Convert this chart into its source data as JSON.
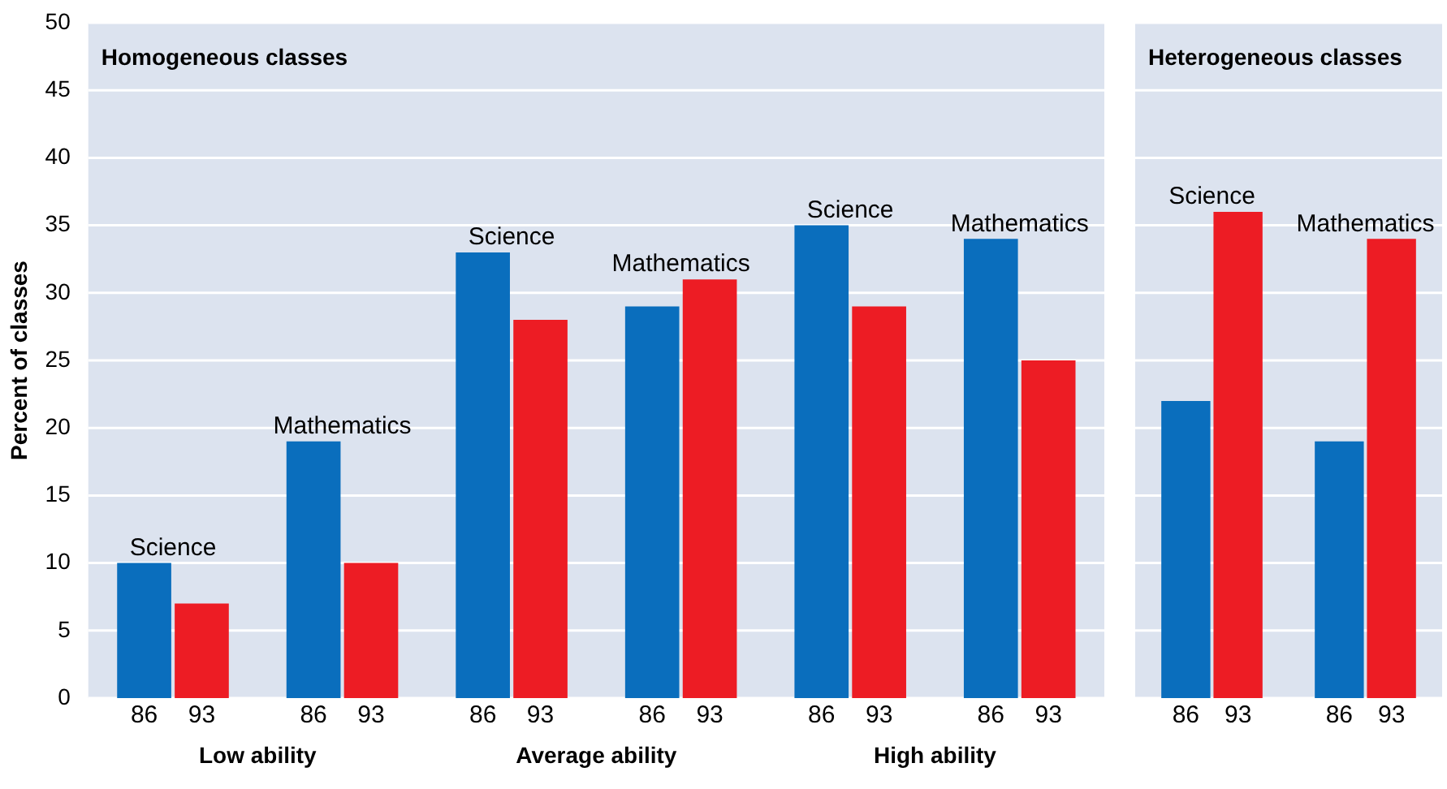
{
  "chart_data": [
    {
      "type": "bar",
      "title": "Homogeneous classes",
      "ylabel": "Percent of classes",
      "categories": [
        "Science",
        "Mathematics",
        "Science",
        "Mathematics",
        "Science",
        "Mathematics"
      ],
      "series": [
        {
          "name": "86",
          "color": "#0a6ebd",
          "values": [
            10,
            19,
            33,
            29,
            35,
            34
          ]
        },
        {
          "name": "93",
          "color": "#ed1c24",
          "values": [
            7,
            10,
            28,
            31,
            29,
            25
          ]
        }
      ],
      "ylim": [
        0,
        50
      ],
      "yticks": [
        0,
        5,
        10,
        15,
        20,
        25,
        30,
        35,
        40,
        45,
        50
      ],
      "grid": "y",
      "annotations": [
        "Low ability",
        "Average ability",
        "High ability"
      ]
    },
    {
      "type": "bar",
      "title": "Heterogeneous classes",
      "categories": [
        "Science",
        "Mathematics"
      ],
      "series": [
        {
          "name": "86",
          "color": "#0a6ebd",
          "values": [
            22,
            19
          ]
        },
        {
          "name": "93",
          "color": "#ed1c24",
          "values": [
            36,
            34
          ]
        }
      ],
      "ylim": [
        0,
        50
      ],
      "yticks": [
        0,
        5,
        10,
        15,
        20,
        25,
        30,
        35,
        40,
        45,
        50
      ],
      "grid": "y",
      "tick_labels": "x"
    }
  ]
}
